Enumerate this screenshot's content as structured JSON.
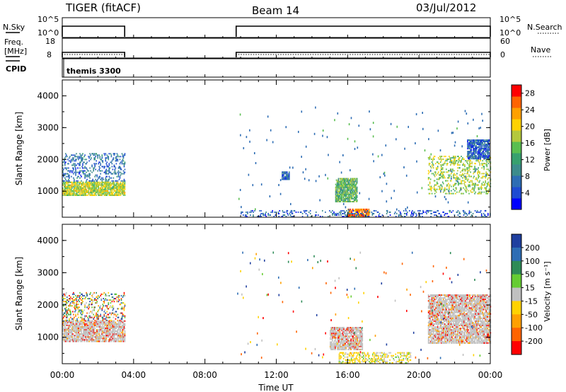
{
  "header": {
    "radar_label": "TIGER (fitACF)",
    "beam_label": "Beam 14",
    "date_label": "03/Jul/2012"
  },
  "summary": {
    "nsky_label": "N.Sky",
    "nsky_ticks": [
      "10^5",
      "10^0"
    ],
    "nsearch_label": "N.Search",
    "nsearch_ticks": [
      "10^5",
      "10^0"
    ],
    "freq_label_1": "Freq.",
    "freq_label_2": "[MHz]",
    "freq_ticks": [
      "18",
      "8"
    ],
    "nave_label": "Nave",
    "nave_ticks": [
      "60",
      "0"
    ],
    "cpid_label": "CPID",
    "cpid_value": "themis 3300",
    "active_intervals_hours": [
      [
        0.0,
        3.5
      ],
      [
        9.75,
        24.0
      ]
    ]
  },
  "chart_data": [
    {
      "type": "heatmap",
      "parameter": "power",
      "ylabel": "Slant Range [km]",
      "ylim": [
        180,
        4500
      ],
      "yticks": [
        "4000",
        "3000",
        "2000",
        "1000"
      ],
      "xlim_hours": [
        0,
        24
      ],
      "colorbar": {
        "label": "Power [dB]",
        "ticks": [
          "28",
          "24",
          "20",
          "16",
          "12",
          "8",
          "4"
        ],
        "range": [
          0,
          30
        ],
        "colors": [
          "#0000ff",
          "#1e4bd2",
          "#2d6db4",
          "#3c8c8c",
          "#37a06e",
          "#5abe50",
          "#b4c83c",
          "#ffd200",
          "#ffa000",
          "#ff6400",
          "#ff0000"
        ]
      },
      "echo_regions": [
        {
          "t_start": 0.0,
          "t_end": 3.5,
          "r_low": 850,
          "r_high": 1300,
          "value": 18
        },
        {
          "t_start": 0.0,
          "t_end": 3.5,
          "r_low": 1300,
          "r_high": 2200,
          "value": 6
        },
        {
          "t_start": 12.3,
          "t_end": 12.7,
          "r_low": 1350,
          "r_high": 1600,
          "value": 6
        },
        {
          "t_start": 15.3,
          "t_end": 16.5,
          "r_low": 650,
          "r_high": 1400,
          "value": 14
        },
        {
          "t_start": 16.0,
          "t_end": 17.2,
          "r_low": 180,
          "r_high": 450,
          "value": 26
        },
        {
          "t_start": 10.0,
          "t_end": 24.0,
          "r_low": 180,
          "r_high": 400,
          "value": 5
        },
        {
          "t_start": 20.5,
          "t_end": 24.0,
          "r_low": 900,
          "r_high": 2100,
          "value": 17
        },
        {
          "t_start": 22.7,
          "t_end": 23.9,
          "r_low": 2000,
          "r_high": 2600,
          "value": 5
        }
      ]
    },
    {
      "type": "heatmap",
      "parameter": "velocity",
      "ylabel": "Slant Range [km]",
      "ylim": [
        180,
        4500
      ],
      "yticks": [
        "4000",
        "3000",
        "2000",
        "1000"
      ],
      "xlabel": "Time UT",
      "xticks": [
        "00:00",
        "04:00",
        "08:00",
        "12:00",
        "16:00",
        "20:00",
        "00:00"
      ],
      "xlim_hours": [
        0,
        24
      ],
      "colorbar": {
        "label": "Velocity [m s⁻¹]",
        "ticks": [
          "200",
          "100",
          "50",
          "15",
          "-15",
          "-50",
          "-100",
          "-200"
        ],
        "colors": [
          "#1f3f9f",
          "#2d6db4",
          "#2e8b57",
          "#66cc33",
          "#c0c0c0",
          "#ffd200",
          "#ffa000",
          "#ff6400",
          "#ff0000"
        ]
      },
      "echo_regions": [
        {
          "t_start": 0.0,
          "t_end": 3.5,
          "r_low": 850,
          "r_high": 1500,
          "value": "ground"
        },
        {
          "t_start": 0.0,
          "t_end": 3.5,
          "r_low": 1500,
          "r_high": 2400,
          "value": "mixed"
        },
        {
          "t_start": 15.0,
          "t_end": 16.8,
          "r_low": 600,
          "r_high": 1300,
          "value": "ground"
        },
        {
          "t_start": 15.5,
          "t_end": 19.5,
          "r_low": 180,
          "r_high": 500,
          "value": "slow"
        },
        {
          "t_start": 20.5,
          "t_end": 24.0,
          "r_low": 800,
          "r_high": 2300,
          "value": "ground"
        }
      ]
    }
  ]
}
